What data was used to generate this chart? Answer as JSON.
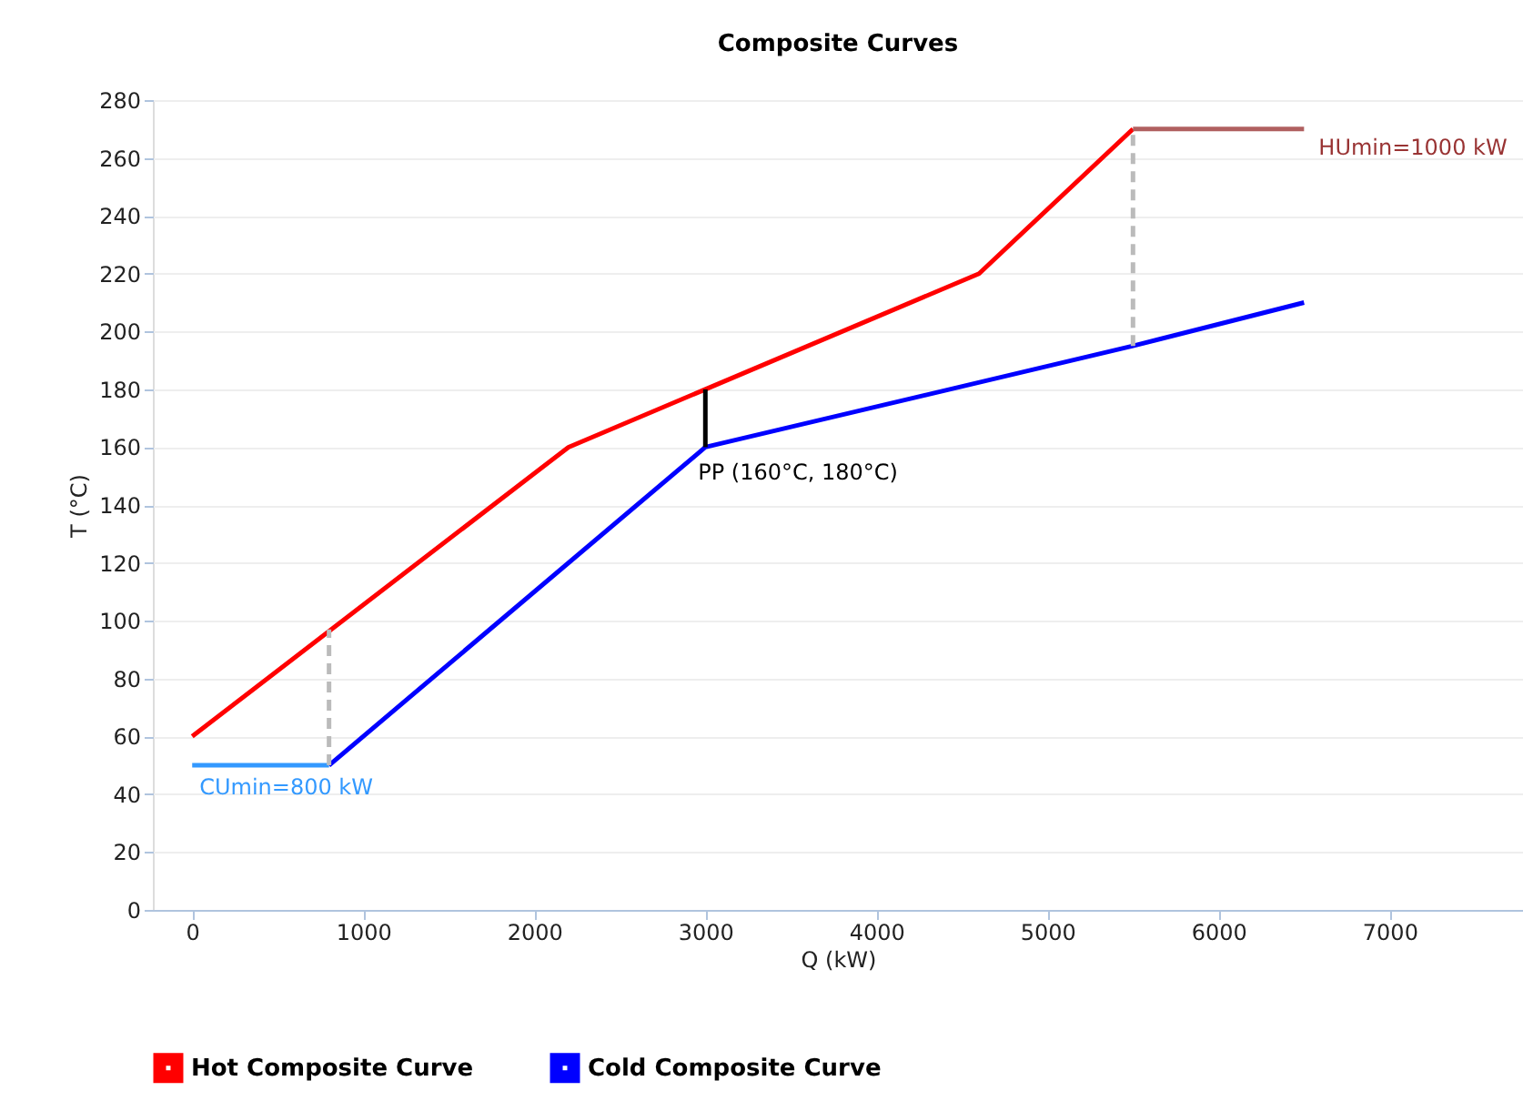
{
  "chart_data": {
    "type": "line",
    "title": "Composite Curves",
    "xlabel": "Q (kW)",
    "ylabel": "T (°C)",
    "xlim": [
      -230,
      7780
    ],
    "ylim": [
      0,
      280
    ],
    "xticks": [
      0,
      1000,
      2000,
      3000,
      4000,
      5000,
      6000,
      7000
    ],
    "yticks": [
      0,
      20,
      40,
      60,
      80,
      100,
      120,
      140,
      160,
      180,
      200,
      220,
      240,
      260,
      280
    ],
    "grid": "y",
    "legend": "bottom left",
    "marker": "none",
    "series": [
      {
        "name": "Hot Composite Curve",
        "color": "#ff0000",
        "x": [
          0,
          2200,
          3000,
          4600,
          5500
        ],
        "values": [
          60,
          160,
          180,
          220,
          270
        ]
      },
      {
        "name": "Cold Composite Curve",
        "color": "#0000ff",
        "x": [
          800,
          3000,
          5500,
          6500
        ],
        "values": [
          50,
          160,
          195,
          210
        ]
      },
      {
        "color": "#b06060",
        "x": [
          5500,
          6500
        ],
        "values": [
          270,
          270
        ]
      },
      {
        "color": "#3399ff",
        "x": [
          0,
          800
        ],
        "values": [
          50,
          50
        ]
      },
      {
        "color": "#bbbbbb",
        "line_style": "dashed",
        "x": [
          800,
          800
        ],
        "values": [
          50,
          97
        ]
      },
      {
        "color": "#bbbbbb",
        "line_style": "dashed",
        "x": [
          5500,
          5500
        ],
        "values": [
          195,
          270
        ]
      },
      {
        "color": "#000000",
        "x": [
          3000,
          3000
        ],
        "values": [
          160,
          180
        ]
      }
    ],
    "annotations": [
      {
        "text": "HUmin=1000 kW",
        "x": 6500,
        "y": 270
      },
      {
        "text": "CUmin=800 kW",
        "x": 0,
        "y": 50
      },
      {
        "text": "PP (160°C, 180°C)",
        "x": 3000,
        "y": 160
      }
    ]
  }
}
